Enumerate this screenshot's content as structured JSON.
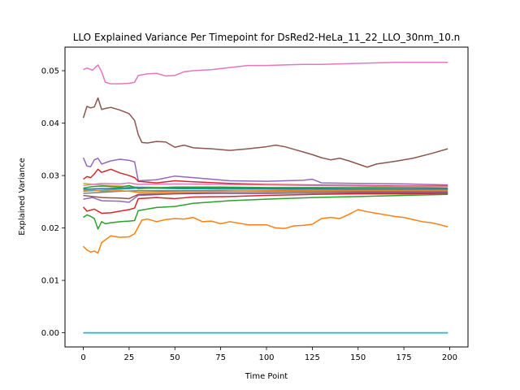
{
  "chart_data": {
    "type": "line",
    "title": "LLO Explained Variance Per Timepoint for DsRed2-HeLa_11_22_LLO_30nm_10.n",
    "xlabel": "Time Point",
    "ylabel": "Explained Variance",
    "xlim": [
      -10,
      210
    ],
    "ylim": [
      -0.0027,
      0.0545
    ],
    "x_ticks": [
      0,
      25,
      50,
      75,
      100,
      125,
      150,
      175,
      200
    ],
    "x_tick_labels": [
      "0",
      "25",
      "50",
      "75",
      "100",
      "125",
      "150",
      "175",
      "200"
    ],
    "y_ticks": [
      0.0,
      0.01,
      0.02,
      0.03,
      0.04,
      0.05
    ],
    "y_tick_labels": [
      "0.00",
      "0.01",
      "0.02",
      "0.03",
      "0.04",
      "0.05"
    ],
    "grid": false,
    "legend": false,
    "series": [
      {
        "color": "#e377c2",
        "x": [
          0,
          2,
          5,
          8,
          10,
          12,
          15,
          20,
          25,
          28,
          30,
          35,
          40,
          45,
          50,
          55,
          60,
          70,
          80,
          90,
          100,
          110,
          120,
          130,
          140,
          150,
          160,
          170,
          180,
          190,
          199
        ],
        "y": [
          0.0502,
          0.0505,
          0.0501,
          0.0511,
          0.0498,
          0.0478,
          0.0475,
          0.0475,
          0.0476,
          0.0478,
          0.0491,
          0.0494,
          0.0495,
          0.049,
          0.0491,
          0.0498,
          0.05,
          0.0502,
          0.0506,
          0.051,
          0.051,
          0.0511,
          0.0512,
          0.0512,
          0.0513,
          0.0514,
          0.0515,
          0.0516,
          0.0516,
          0.0516,
          0.0516
        ]
      },
      {
        "color": "#8c564b",
        "x": [
          0,
          2,
          4,
          6,
          8,
          10,
          12,
          15,
          20,
          25,
          28,
          30,
          32,
          35,
          40,
          45,
          50,
          55,
          60,
          70,
          80,
          90,
          100,
          105,
          110,
          115,
          120,
          125,
          130,
          135,
          140,
          145,
          150,
          155,
          160,
          170,
          180,
          190,
          199
        ],
        "y": [
          0.041,
          0.0432,
          0.0429,
          0.0431,
          0.0448,
          0.0426,
          0.0428,
          0.043,
          0.0425,
          0.0418,
          0.0405,
          0.0378,
          0.0363,
          0.0362,
          0.0365,
          0.0364,
          0.0354,
          0.0358,
          0.0353,
          0.0351,
          0.0348,
          0.0351,
          0.0355,
          0.0358,
          0.0355,
          0.035,
          0.0345,
          0.034,
          0.0334,
          0.033,
          0.0333,
          0.0328,
          0.0322,
          0.0316,
          0.0322,
          0.0327,
          0.0333,
          0.0342,
          0.0351
        ]
      },
      {
        "color": "#9467bd",
        "x": [
          0,
          2,
          4,
          6,
          8,
          10,
          15,
          20,
          25,
          28,
          30,
          40,
          50,
          60,
          80,
          100,
          120,
          125,
          130,
          150,
          175,
          199
        ],
        "y": [
          0.0334,
          0.0318,
          0.0317,
          0.033,
          0.0333,
          0.0322,
          0.0328,
          0.0331,
          0.0329,
          0.0326,
          0.029,
          0.0292,
          0.0299,
          0.0296,
          0.029,
          0.0289,
          0.0291,
          0.0293,
          0.0286,
          0.0285,
          0.0284,
          0.0282
        ]
      },
      {
        "color": "#d62728",
        "x": [
          0,
          2,
          4,
          6,
          8,
          10,
          15,
          20,
          25,
          28,
          30,
          40,
          50,
          60,
          80,
          100,
          125,
          150,
          175,
          199
        ],
        "y": [
          0.0293,
          0.0298,
          0.0296,
          0.0303,
          0.0312,
          0.0306,
          0.0312,
          0.0305,
          0.03,
          0.0296,
          0.0289,
          0.0286,
          0.029,
          0.0288,
          0.0285,
          0.0283,
          0.0282,
          0.0281,
          0.028,
          0.028
        ]
      },
      {
        "color": "#d62728",
        "x": [
          0,
          2,
          4,
          6,
          8,
          10,
          15,
          20,
          25,
          28,
          30,
          40,
          50,
          60,
          80,
          100,
          125,
          150,
          175,
          199
        ],
        "y": [
          0.024,
          0.0232,
          0.0234,
          0.0236,
          0.0232,
          0.0228,
          0.0229,
          0.0232,
          0.0235,
          0.0238,
          0.0256,
          0.0258,
          0.0256,
          0.0259,
          0.026,
          0.0262,
          0.0264,
          0.0265,
          0.0265,
          0.0266
        ]
      },
      {
        "color": "#2ca02c",
        "x": [
          0,
          2,
          4,
          6,
          8,
          10,
          12,
          15,
          20,
          25,
          28,
          30,
          40,
          50,
          60,
          80,
          100,
          125,
          150,
          175,
          199
        ],
        "y": [
          0.022,
          0.0225,
          0.0222,
          0.0218,
          0.0198,
          0.0212,
          0.0208,
          0.021,
          0.0212,
          0.0213,
          0.0214,
          0.0233,
          0.0239,
          0.0241,
          0.0247,
          0.0252,
          0.0255,
          0.0258,
          0.026,
          0.0262,
          0.0264
        ]
      },
      {
        "color": "#ff7f0e",
        "x": [
          0,
          2,
          4,
          6,
          8,
          10,
          15,
          20,
          25,
          28,
          30,
          32,
          35,
          40,
          45,
          50,
          55,
          60,
          65,
          70,
          75,
          80,
          90,
          100,
          105,
          110,
          115,
          120,
          125,
          130,
          135,
          140,
          145,
          150,
          155,
          160,
          165,
          170,
          175,
          180,
          185,
          190,
          195,
          199
        ],
        "y": [
          0.0165,
          0.0158,
          0.0154,
          0.0156,
          0.0152,
          0.0172,
          0.0185,
          0.0182,
          0.0183,
          0.0189,
          0.0202,
          0.0215,
          0.0217,
          0.0212,
          0.0216,
          0.0218,
          0.0217,
          0.022,
          0.0212,
          0.0213,
          0.0208,
          0.0212,
          0.0206,
          0.0206,
          0.02,
          0.0199,
          0.0204,
          0.0205,
          0.0207,
          0.0218,
          0.022,
          0.0218,
          0.0226,
          0.0235,
          0.0231,
          0.0228,
          0.0225,
          0.0222,
          0.022,
          0.0216,
          0.0212,
          0.021,
          0.0206,
          0.0202
        ]
      },
      {
        "color": "#bcbd22",
        "x": [
          0,
          10,
          20,
          30,
          50,
          75,
          100,
          125,
          150,
          175,
          199
        ],
        "y": [
          0.0285,
          0.0282,
          0.028,
          0.0278,
          0.0277,
          0.0276,
          0.0276,
          0.0275,
          0.0275,
          0.0275,
          0.0275
        ]
      },
      {
        "color": "#17becf",
        "x": [
          0,
          10,
          20,
          30,
          50,
          75,
          100,
          125,
          150,
          175,
          199
        ],
        "y": [
          0.027,
          0.0272,
          0.0274,
          0.0276,
          0.0275,
          0.0274,
          0.0274,
          0.0273,
          0.0273,
          0.0273,
          0.0273
        ]
      },
      {
        "color": "#7f7f7f",
        "x": [
          0,
          10,
          20,
          30,
          50,
          75,
          100,
          125,
          150,
          175,
          199
        ],
        "y": [
          0.0266,
          0.0268,
          0.027,
          0.0271,
          0.0271,
          0.0271,
          0.027,
          0.027,
          0.027,
          0.027,
          0.027
        ]
      },
      {
        "color": "#1f77b4",
        "x": [
          0,
          10,
          20,
          30,
          50,
          75,
          100,
          125,
          150,
          175,
          199
        ],
        "y": [
          0.0274,
          0.0275,
          0.0276,
          0.0277,
          0.0276,
          0.0276,
          0.0275,
          0.0275,
          0.0274,
          0.0274,
          0.0274
        ]
      },
      {
        "color": "#2ca02c",
        "x": [
          0,
          5,
          10,
          20,
          25,
          30,
          50,
          75,
          100,
          125,
          150,
          175,
          199
        ],
        "y": [
          0.0276,
          0.0279,
          0.028,
          0.0278,
          0.0281,
          0.0275,
          0.0278,
          0.0278,
          0.0277,
          0.0277,
          0.0277,
          0.0277,
          0.0276
        ]
      },
      {
        "color": "#ff7f0e",
        "x": [
          0,
          5,
          10,
          20,
          25,
          30,
          50,
          75,
          100,
          125,
          150,
          175,
          199
        ],
        "y": [
          0.0272,
          0.0273,
          0.027,
          0.0271,
          0.027,
          0.0268,
          0.0269,
          0.027,
          0.0271,
          0.0272,
          0.0272,
          0.0272,
          0.0272
        ]
      },
      {
        "color": "#9467bd",
        "x": [
          0,
          5,
          10,
          20,
          25,
          30,
          50,
          75,
          100,
          125,
          150,
          175,
          199
        ],
        "y": [
          0.0255,
          0.0258,
          0.0252,
          0.0251,
          0.0249,
          0.0262,
          0.0265,
          0.0266,
          0.0266,
          0.0267,
          0.0268,
          0.0268,
          0.0268
        ]
      },
      {
        "color": "#8c564b",
        "x": [
          0,
          5,
          10,
          20,
          25,
          30,
          50,
          75,
          100,
          125,
          150,
          175,
          199
        ],
        "y": [
          0.0262,
          0.026,
          0.0258,
          0.0257,
          0.0256,
          0.0264,
          0.0266,
          0.0267,
          0.0267,
          0.0267,
          0.0267,
          0.0267,
          0.0267
        ]
      },
      {
        "color": "#e377c2",
        "x": [
          0,
          5,
          10,
          20,
          25,
          30,
          50,
          75,
          100,
          125,
          150,
          175,
          199
        ],
        "y": [
          0.0281,
          0.0283,
          0.0285,
          0.0284,
          0.0286,
          0.0283,
          0.0284,
          0.0283,
          0.0282,
          0.0281,
          0.028,
          0.0279,
          0.0279
        ]
      },
      {
        "color": "#1f77b4",
        "x": [
          0,
          199
        ],
        "y": [
          0.0,
          0.0
        ]
      },
      {
        "color": "#17becf",
        "x": [
          0,
          199
        ],
        "y": [
          0.0,
          0.0
        ]
      }
    ]
  }
}
